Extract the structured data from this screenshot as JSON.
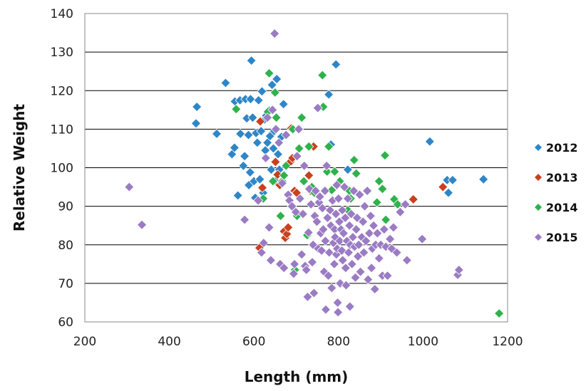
{
  "chart_data": {
    "type": "scatter",
    "title": "",
    "xlabel": "Length (mm)",
    "ylabel": "Relative Weight",
    "xlim": [
      200,
      1200
    ],
    "ylim": [
      60,
      140
    ],
    "x_ticks": [
      "200",
      "400",
      "600",
      "800",
      "1000",
      "1200"
    ],
    "y_ticks": [
      "60",
      "70",
      "80",
      "90",
      "100",
      "110",
      "120",
      "130",
      "140"
    ],
    "grid": "horizontal",
    "legend_position": "right",
    "marker": "diamond",
    "series": [
      {
        "name": "2012",
        "color": "#2e86c8",
        "points": [
          [
            463,
            111.5
          ],
          [
            465,
            115.8
          ],
          [
            512,
            108.8
          ],
          [
            533,
            122
          ],
          [
            548,
            103.5
          ],
          [
            554,
            105.2
          ],
          [
            555,
            117.2
          ],
          [
            562,
            92.8
          ],
          [
            567,
            117.5
          ],
          [
            568,
            108.8
          ],
          [
            575,
            100.5
          ],
          [
            578,
            103
          ],
          [
            580,
            117.8
          ],
          [
            583,
            112.8
          ],
          [
            587,
            108.5
          ],
          [
            588,
            95.5
          ],
          [
            591,
            98.8
          ],
          [
            592,
            117.8
          ],
          [
            594,
            127.8
          ],
          [
            597,
            113
          ],
          [
            600,
            96.5
          ],
          [
            603,
            92.2
          ],
          [
            605,
            109
          ],
          [
            608,
            106.5
          ],
          [
            611,
            117.5
          ],
          [
            614,
            97
          ],
          [
            617,
            109.5
          ],
          [
            619,
            119.8
          ],
          [
            622,
            93.5
          ],
          [
            625,
            112.5
          ],
          [
            627,
            104.5
          ],
          [
            629,
            113.5
          ],
          [
            632,
            106.5
          ],
          [
            636,
            114.8
          ],
          [
            638,
            108.2
          ],
          [
            641,
            99.5
          ],
          [
            643,
            121.5
          ],
          [
            646,
            105
          ],
          [
            648,
            109.5
          ],
          [
            651,
            96.5
          ],
          [
            654,
            123
          ],
          [
            657,
            103.5
          ],
          [
            660,
            99.5
          ],
          [
            665,
            108
          ],
          [
            670,
            116.5
          ],
          [
            777,
            119
          ],
          [
            782,
            106
          ],
          [
            794,
            126.8
          ],
          [
            822,
            99.5
          ],
          [
            1016,
            106.8
          ],
          [
            1057,
            96.8
          ],
          [
            1060,
            93.5
          ],
          [
            1070,
            96.8
          ],
          [
            1143,
            97
          ]
        ]
      },
      {
        "name": "2013",
        "color": "#c8401e",
        "points": [
          [
            613,
            79.2
          ],
          [
            615,
            112
          ],
          [
            620,
            94.8
          ],
          [
            651,
            101.5
          ],
          [
            656,
            98.2
          ],
          [
            661,
            95.5
          ],
          [
            671,
            83.5
          ],
          [
            674,
            81.8
          ],
          [
            678,
            82.8
          ],
          [
            681,
            84.5
          ],
          [
            686,
            101.5
          ],
          [
            688,
            110.2
          ],
          [
            691,
            102.5
          ],
          [
            696,
            94
          ],
          [
            701,
            93.5
          ],
          [
            730,
            98
          ],
          [
            734,
            94
          ],
          [
            741,
            105.5
          ],
          [
            977,
            91.8
          ],
          [
            1047,
            95
          ]
        ]
      },
      {
        "name": "2014",
        "color": "#2fb24c",
        "points": [
          [
            558,
            115.2
          ],
          [
            622,
            92
          ],
          [
            633,
            114.5
          ],
          [
            636,
            124.5
          ],
          [
            645,
            96.5
          ],
          [
            650,
            119.5
          ],
          [
            653,
            113
          ],
          [
            663,
            87.5
          ],
          [
            667,
            96.5
          ],
          [
            671,
            98
          ],
          [
            676,
            100.5
          ],
          [
            692,
            110
          ],
          [
            697,
            73.5
          ],
          [
            702,
            87.5
          ],
          [
            707,
            105
          ],
          [
            713,
            113
          ],
          [
            718,
            96.5
          ],
          [
            726,
            82.5
          ],
          [
            730,
            105.5
          ],
          [
            737,
            95
          ],
          [
            743,
            93.5
          ],
          [
            762,
            124
          ],
          [
            764,
            115.8
          ],
          [
            773,
            99
          ],
          [
            777,
            105.5
          ],
          [
            784,
            94.2
          ],
          [
            791,
            99
          ],
          [
            803,
            96.5
          ],
          [
            822,
            89
          ],
          [
            826,
            94
          ],
          [
            829,
            92
          ],
          [
            837,
            102
          ],
          [
            842,
            98.5
          ],
          [
            891,
            91
          ],
          [
            896,
            96.5
          ],
          [
            904,
            94.5
          ],
          [
            910,
            103.2
          ],
          [
            912,
            86.5
          ],
          [
            932,
            91.8
          ],
          [
            940,
            90.5
          ],
          [
            1180,
            62.2
          ]
        ]
      },
      {
        "name": "2015",
        "color": "#9b7bc4",
        "points": [
          [
            305,
            95
          ],
          [
            335,
            85.2
          ],
          [
            578,
            86.5
          ],
          [
            610,
            91.5
          ],
          [
            618,
            78
          ],
          [
            623,
            80.5
          ],
          [
            628,
            102.5
          ],
          [
            632,
            113
          ],
          [
            636,
            84.5
          ],
          [
            640,
            76
          ],
          [
            644,
            115
          ],
          [
            649,
            134.8
          ],
          [
            652,
            110
          ],
          [
            659,
            106.5
          ],
          [
            662,
            75
          ],
          [
            667,
            96
          ],
          [
            671,
            74
          ],
          [
            676,
            108.5
          ],
          [
            681,
            93
          ],
          [
            684,
            91.5
          ],
          [
            690,
            90
          ],
          [
            694,
            72.5
          ],
          [
            696,
            75
          ],
          [
            699,
            88.5
          ],
          [
            702,
            103
          ],
          [
            706,
            110
          ],
          [
            709,
            92
          ],
          [
            713,
            77.5
          ],
          [
            716,
            88
          ],
          [
            719,
            100.5
          ],
          [
            721,
            74.5
          ],
          [
            724,
            73.5
          ],
          [
            727,
            66.5
          ],
          [
            729,
            83.2
          ],
          [
            731,
            94.5
          ],
          [
            735,
            90.5
          ],
          [
            738,
            75.5
          ],
          [
            740,
            80
          ],
          [
            742,
            67.5
          ],
          [
            744,
            87.5
          ],
          [
            746,
            94
          ],
          [
            749,
            86
          ],
          [
            751,
            115.5
          ],
          [
            752,
            79
          ],
          [
            754,
            91
          ],
          [
            756,
            92.5
          ],
          [
            758,
            83
          ],
          [
            760,
            78.5
          ],
          [
            762,
            89.5
          ],
          [
            764,
            84
          ],
          [
            766,
            73
          ],
          [
            768,
            94
          ],
          [
            769,
            81
          ],
          [
            770,
            63.2
          ],
          [
            772,
            100.5
          ],
          [
            774,
            87
          ],
          [
            776,
            72
          ],
          [
            778,
            78
          ],
          [
            780,
            89
          ],
          [
            782,
            85
          ],
          [
            784,
            68.8
          ],
          [
            786,
            91.5
          ],
          [
            788,
            80.5
          ],
          [
            790,
            75
          ],
          [
            791,
            84
          ],
          [
            792,
            82
          ],
          [
            794,
            88
          ],
          [
            795,
            77.5
          ],
          [
            796,
            95.5
          ],
          [
            797,
            79
          ],
          [
            798,
            65
          ],
          [
            799,
            62.5
          ],
          [
            800,
            92
          ],
          [
            802,
            86
          ],
          [
            803,
            81
          ],
          [
            804,
            70
          ],
          [
            806,
            84
          ],
          [
            808,
            78.5
          ],
          [
            809,
            89
          ],
          [
            810,
            76
          ],
          [
            812,
            83
          ],
          [
            814,
            95
          ],
          [
            816,
            87
          ],
          [
            817,
            74
          ],
          [
            818,
            69.5
          ],
          [
            820,
            81
          ],
          [
            822,
            92
          ],
          [
            824,
            78
          ],
          [
            826,
            85
          ],
          [
            827,
            64
          ],
          [
            828,
            80
          ],
          [
            830,
            88
          ],
          [
            832,
            75
          ],
          [
            834,
            82
          ],
          [
            836,
            94
          ],
          [
            838,
            79.5
          ],
          [
            840,
            71.5
          ],
          [
            842,
            84
          ],
          [
            844,
            87
          ],
          [
            846,
            77
          ],
          [
            848,
            80
          ],
          [
            850,
            93
          ],
          [
            852,
            73
          ],
          [
            855,
            82
          ],
          [
            858,
            86
          ],
          [
            860,
            78
          ],
          [
            862,
            90
          ],
          [
            865,
            81
          ],
          [
            868,
            94
          ],
          [
            870,
            71
          ],
          [
            873,
            83
          ],
          [
            876,
            87.5
          ],
          [
            878,
            74
          ],
          [
            880,
            79
          ],
          [
            883,
            85
          ],
          [
            886,
            68.5
          ],
          [
            888,
            80
          ],
          [
            892,
            83
          ],
          [
            896,
            76.5
          ],
          [
            900,
            80
          ],
          [
            904,
            72
          ],
          [
            908,
            84
          ],
          [
            912,
            79.5
          ],
          [
            916,
            72
          ],
          [
            922,
            81.5
          ],
          [
            926,
            79
          ],
          [
            930,
            84.5
          ],
          [
            938,
            78
          ],
          [
            946,
            88.5
          ],
          [
            958,
            90.5
          ],
          [
            962,
            76
          ],
          [
            998,
            81.5
          ],
          [
            1082,
            72.2
          ],
          [
            1085,
            73.5
          ]
        ]
      }
    ]
  }
}
